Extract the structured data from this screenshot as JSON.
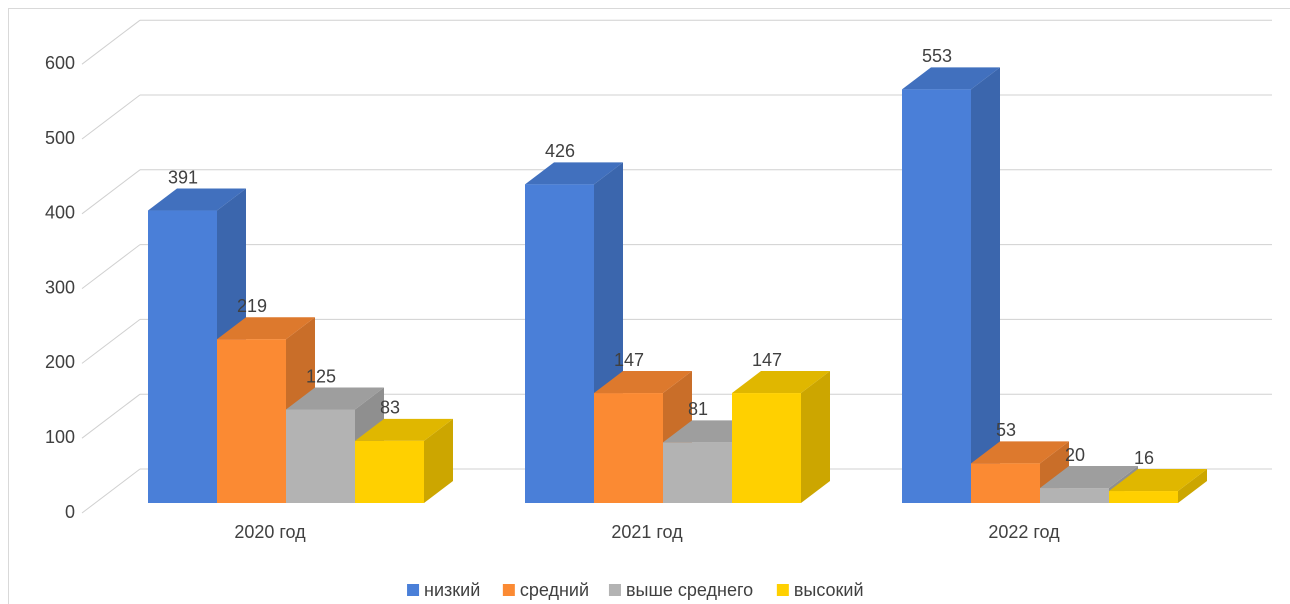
{
  "chart_data": {
    "type": "bar3d",
    "categories": [
      "2020 год",
      "2021 год",
      "2022 год"
    ],
    "series": [
      {
        "name": "низкий",
        "color": "#4a7fd8",
        "values": [
          391,
          426,
          553
        ]
      },
      {
        "name": "средний",
        "color": "#fb8a33",
        "values": [
          219,
          147,
          53
        ]
      },
      {
        "name": "выше среднего",
        "color": "#b3b3b3",
        "values": [
          125,
          81,
          20
        ]
      },
      {
        "name": "высокий",
        "color": "#ffd000",
        "values": [
          83,
          147,
          16
        ]
      }
    ],
    "ylim": [
      0,
      600
    ],
    "yticks": [
      0,
      100,
      200,
      300,
      400,
      500,
      600
    ],
    "grid": true,
    "legend": "bottom"
  }
}
